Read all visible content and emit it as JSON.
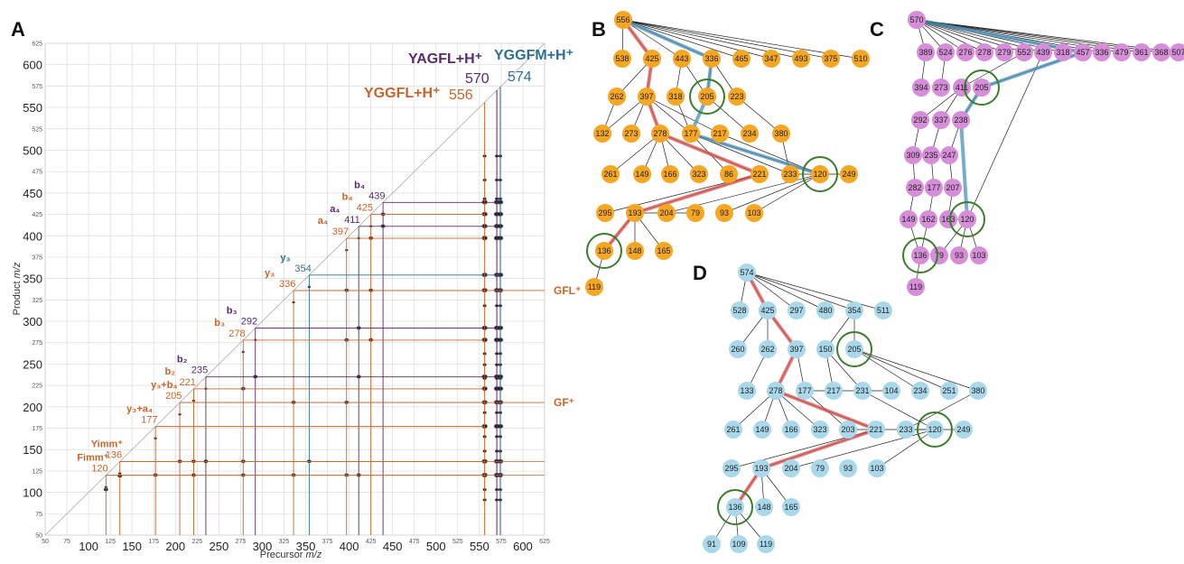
{
  "panels": {
    "A": "A",
    "B": "B",
    "C": "C",
    "D": "D"
  },
  "colors": {
    "orange": "#c8642a",
    "purple": "#5a2a6e",
    "teal": "#2f6f8f",
    "node_B": "#f5a623",
    "node_C": "#d78ed9",
    "node_D": "#a8d8ea",
    "highlight_red": "#d9534f",
    "highlight_blue": "#4a90b8",
    "circle_green": "#3a7d2a"
  },
  "chart_data": [
    {
      "type": "scatter",
      "panel": "A",
      "xlabel_main": "Precursor ",
      "xlabel_ital": "m/z",
      "ylabel_main": "Product ",
      "ylabel_ital": "m/z",
      "xlim": [
        50,
        625
      ],
      "ylim": [
        50,
        625
      ],
      "ticks": [
        50,
        75,
        100,
        125,
        150,
        175,
        200,
        225,
        250,
        275,
        300,
        325,
        350,
        375,
        400,
        425,
        450,
        475,
        500,
        525,
        550,
        575,
        600,
        625
      ],
      "major_ticks": [
        100,
        150,
        200,
        250,
        300,
        350,
        400,
        450,
        500,
        550,
        600
      ],
      "precursors": [
        {
          "name": "YAGFL+H⁺",
          "mz": "570",
          "x": 570,
          "color": "purple"
        },
        {
          "name": "YGGFM+H⁺",
          "mz": "574",
          "x": 574,
          "color": "teal"
        },
        {
          "name": "YGGFL+H⁺",
          "mz": "556",
          "x": 556,
          "color": "orange"
        }
      ],
      "fragments": [
        {
          "label": "b₄",
          "mz": "439",
          "v": 439,
          "color": "purple"
        },
        {
          "label": "b₄",
          "mz": "425",
          "v": 425,
          "color": "orange"
        },
        {
          "label": "a₄",
          "mz": "411",
          "v": 411,
          "color": "purple"
        },
        {
          "label": "a₄",
          "mz": "397",
          "v": 397,
          "color": "orange"
        },
        {
          "label": "y₃",
          "mz": "354",
          "v": 354,
          "color": "teal"
        },
        {
          "label": "y₃",
          "mz": "336",
          "v": 336,
          "color": "orange"
        },
        {
          "label": "b₃",
          "mz": "292",
          "v": 292,
          "color": "purple"
        },
        {
          "label": "b₃",
          "mz": "278",
          "v": 278,
          "color": "orange"
        },
        {
          "label": "b₂",
          "mz": "235",
          "v": 235,
          "color": "purple"
        },
        {
          "label": "b₂",
          "mz": "221",
          "v": 221,
          "color": "orange"
        },
        {
          "label": "y₃+b₄",
          "mz": "205",
          "v": 205,
          "color": "orange"
        },
        {
          "label": "y₃+a₄",
          "mz": "177",
          "v": 177,
          "color": "orange"
        },
        {
          "label": "Yimm⁺",
          "mz": "136",
          "v": 136,
          "color": "orange"
        },
        {
          "label": "Fimm⁺",
          "mz": "120",
          "v": 120,
          "color": "orange"
        }
      ],
      "side_labels": [
        {
          "label": "GFL⁺",
          "y": 336
        },
        {
          "label": "GF⁺",
          "y": 205
        }
      ]
    },
    {
      "type": "network",
      "panel": "B",
      "root": "556",
      "nodes": [
        "556",
        "538",
        "425",
        "443",
        "336",
        "465",
        "347",
        "493",
        "375",
        "510",
        "262",
        "397",
        "318",
        "205",
        "223",
        "132",
        "273",
        "278",
        "177",
        "217",
        "234",
        "380",
        "261",
        "149",
        "166",
        "323",
        "86",
        "221",
        "233",
        "120",
        "249",
        "295",
        "193",
        "204",
        "79",
        "93",
        "103",
        "136",
        "148",
        "165",
        "119"
      ],
      "circled": [
        "205",
        "120",
        "136"
      ],
      "path_red": [
        "556",
        "425",
        "397",
        "278",
        "221",
        "193",
        "136"
      ],
      "path_blue": [
        "556",
        "336",
        "205",
        "177",
        "120"
      ]
    },
    {
      "type": "network",
      "panel": "C",
      "root": "570",
      "nodes": [
        "570",
        "389",
        "524",
        "276",
        "278",
        "279",
        "552",
        "439",
        "318",
        "457",
        "336",
        "479",
        "361",
        "368",
        "507",
        "394",
        "273",
        "411",
        "205",
        "292",
        "337",
        "238",
        "309",
        "235",
        "247",
        "282",
        "177",
        "207",
        "149",
        "162",
        "163",
        "120",
        "136",
        "79",
        "93",
        "103",
        "119"
      ],
      "circled": [
        "205",
        "120",
        "136"
      ],
      "path_blue": [
        "570",
        "457",
        "205",
        "238",
        "120"
      ]
    },
    {
      "type": "network",
      "panel": "D",
      "root": "574",
      "nodes": [
        "574",
        "528",
        "425",
        "297",
        "480",
        "354",
        "511",
        "260",
        "262",
        "397",
        "150",
        "205",
        "133",
        "278",
        "177",
        "217",
        "231",
        "104",
        "234",
        "251",
        "380",
        "261",
        "149",
        "166",
        "323",
        "203",
        "221",
        "233",
        "120",
        "249",
        "295",
        "193",
        "204",
        "79",
        "93",
        "103",
        "136",
        "148",
        "165",
        "91",
        "109",
        "119"
      ],
      "circled": [
        "205",
        "120",
        "136"
      ],
      "path_red": [
        "574",
        "425",
        "397",
        "278",
        "221",
        "193",
        "136"
      ]
    }
  ]
}
